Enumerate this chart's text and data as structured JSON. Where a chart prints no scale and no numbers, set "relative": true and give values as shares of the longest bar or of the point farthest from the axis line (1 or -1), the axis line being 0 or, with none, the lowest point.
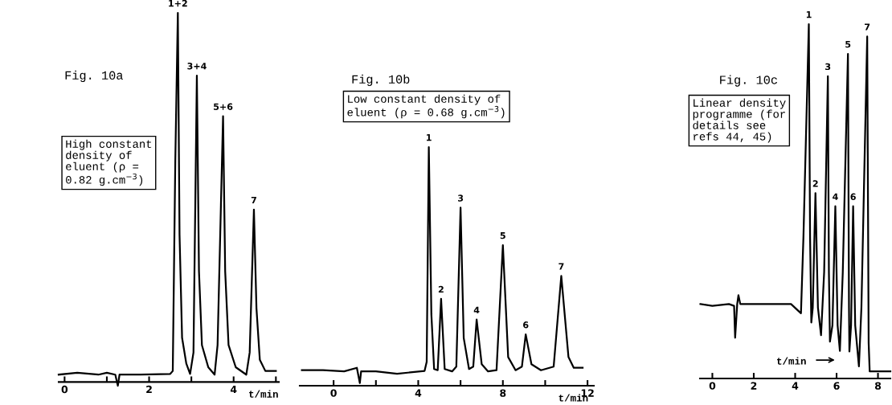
{
  "chart_data": [
    {
      "type": "line",
      "relative": true,
      "title": "Fig. 10a",
      "xlabel": "t/min",
      "xlim": [
        -0.14,
        5.07
      ],
      "xticks": [
        0,
        {
          "value": 1,
          "label": null
        },
        2,
        {
          "value": 3,
          "label": null
        },
        4,
        {
          "value": 5,
          "label": null
        }
      ],
      "series": [
        {
          "color": "#000000",
          "x": [
            -0.14,
            0.3,
            0.8,
            1.0,
            1.2,
            1.26,
            1.3,
            1.8,
            2.5,
            2.56,
            2.62,
            2.68,
            2.72,
            2.78,
            2.88,
            2.97,
            3.05,
            3.13,
            3.18,
            3.25,
            3.4,
            3.55,
            3.62,
            3.75,
            3.8,
            3.88,
            4.05,
            4.3,
            4.38,
            4.48,
            4.54,
            4.62,
            4.75,
            5.0
          ],
          "values": [
            0.02,
            0.025,
            0.02,
            0.025,
            0.02,
            -0.01,
            0.02,
            0.02,
            0.022,
            0.03,
            0.6,
            1.0,
            0.4,
            0.12,
            0.05,
            0.022,
            0.08,
            0.83,
            0.3,
            0.1,
            0.04,
            0.02,
            0.1,
            0.72,
            0.3,
            0.1,
            0.04,
            0.02,
            0.08,
            0.467,
            0.2,
            0.06,
            0.03,
            0.03
          ]
        }
      ],
      "annotations": [
        "High constant\ndensity of\neluent (ρ =\n0.82 g.cm$^{−3}$)",
        {
          "text": "1+2",
          "x": 2.68,
          "y": 1.0
        },
        {
          "text": "3+4",
          "x": 3.13,
          "y": 0.83
        },
        {
          "text": "5+6",
          "x": 3.75,
          "y": 0.72
        },
        {
          "text": "7",
          "x": 4.48,
          "y": 0.467
        }
      ]
    },
    {
      "type": "line",
      "relative": true,
      "title": "Fig. 10b",
      "xlabel": "t/min",
      "xlim": [
        -1.6,
        12.3
      ],
      "xticks": [
        0,
        {
          "value": 2,
          "label": null
        },
        4,
        {
          "value": 6,
          "label": null
        },
        8,
        {
          "value": 10,
          "label": null
        },
        12
      ],
      "series": [
        {
          "color": "#000000",
          "x": [
            -1.5,
            -0.5,
            0.5,
            1.1,
            1.24,
            1.3,
            2,
            3,
            4.3,
            4.4,
            4.5,
            4.62,
            4.75,
            4.92,
            5.08,
            5.25,
            5.6,
            5.8,
            6.0,
            6.15,
            6.4,
            6.6,
            6.76,
            7.0,
            7.3,
            7.7,
            8.0,
            8.25,
            8.6,
            8.9,
            9.08,
            9.35,
            9.8,
            10.4,
            10.76,
            11.1,
            11.35,
            11.77
          ],
          "values": [
            0.065,
            0.065,
            0.06,
            0.075,
            0.011,
            0.06,
            0.06,
            0.05,
            0.062,
            0.1,
            1.0,
            0.3,
            0.07,
            0.065,
            0.364,
            0.07,
            0.06,
            0.08,
            0.746,
            0.2,
            0.07,
            0.08,
            0.277,
            0.09,
            0.06,
            0.065,
            0.589,
            0.12,
            0.065,
            0.08,
            0.215,
            0.09,
            0.065,
            0.08,
            0.46,
            0.12,
            0.075,
            0.075
          ]
        }
      ],
      "annotations": [
        "Low constant density of\neluent (ρ = 0.68 g.cm$^{−3}$)",
        {
          "text": "1",
          "x": 4.5,
          "y": 1.0
        },
        {
          "text": "2",
          "x": 5.08,
          "y": 0.364
        },
        {
          "text": "3",
          "x": 6.0,
          "y": 0.746
        },
        {
          "text": "4",
          "x": 6.76,
          "y": 0.277
        },
        {
          "text": "5",
          "x": 8.0,
          "y": 0.589
        },
        {
          "text": "6",
          "x": 9.08,
          "y": 0.215
        },
        {
          "text": "7",
          "x": 10.76,
          "y": 0.46
        }
      ]
    },
    {
      "type": "line",
      "relative": true,
      "title": "Fig. 10c",
      "xlabel": "t/min",
      "xlim": [
        -0.6,
        8.6
      ],
      "xticks": [
        0,
        2,
        4,
        6,
        8
      ],
      "series": [
        {
          "color": "#000000",
          "x": [
            -0.58,
            0,
            0.8,
            1.05,
            1.1,
            1.2,
            1.26,
            1.35,
            2,
            3,
            3.8,
            4.28,
            4.4,
            4.66,
            4.72,
            4.78,
            4.85,
            4.98,
            5.1,
            5.25,
            5.4,
            5.58,
            5.63,
            5.68,
            5.8,
            5.94,
            6.05,
            6.16,
            6.3,
            6.55,
            6.6,
            6.62,
            6.7,
            6.8,
            6.9,
            7.08,
            7.2,
            7.48,
            7.55,
            7.6,
            8.6
          ],
          "values": [
            0.21,
            0.205,
            0.21,
            0.205,
            0.115,
            0.21,
            0.235,
            0.21,
            0.21,
            0.21,
            0.21,
            0.184,
            0.4,
            1.0,
            0.4,
            0.158,
            0.2,
            0.523,
            0.2,
            0.122,
            0.3,
            0.853,
            0.3,
            0.104,
            0.15,
            0.486,
            0.15,
            0.078,
            0.3,
            0.916,
            0.2,
            0.076,
            0.15,
            0.486,
            0.15,
            0.034,
            0.2,
            0.965,
            0.1,
            0.02,
            0.02
          ]
        }
      ],
      "annotations": [
        "Linear density\nprogramme (for\ndetails see\nrefs 44, 45)",
        {
          "text": "1",
          "x": 4.66,
          "y": 1.0
        },
        {
          "text": "2",
          "x": 4.98,
          "y": 0.523
        },
        {
          "text": "3",
          "x": 5.58,
          "y": 0.853
        },
        {
          "text": "4",
          "x": 5.94,
          "y": 0.486
        },
        {
          "text": "5",
          "x": 6.55,
          "y": 0.916
        },
        {
          "text": "6",
          "x": 6.8,
          "y": 0.486
        },
        {
          "text": "7",
          "x": 7.48,
          "y": 0.965
        }
      ]
    }
  ]
}
